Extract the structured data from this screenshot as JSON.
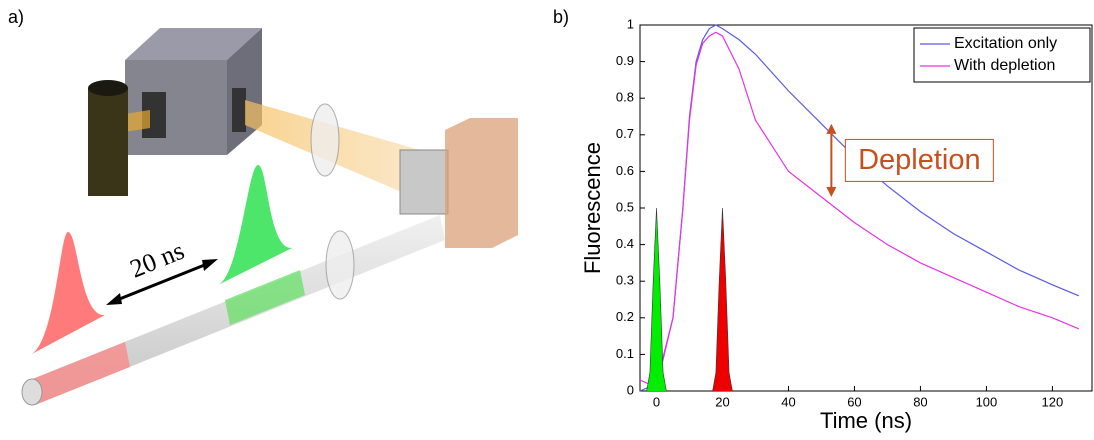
{
  "diagram": {
    "label": "a)",
    "delay": "20 ns"
  },
  "chart_data": {
    "type": "line",
    "panel_label": "b)",
    "xlabel": "Time (ns)",
    "ylabel": "Fluorescence",
    "xlim": [
      -5,
      132
    ],
    "ylim": [
      0,
      1
    ],
    "xticks": [
      0,
      20,
      40,
      60,
      80,
      100,
      120
    ],
    "yticks": [
      0,
      0.1,
      0.2,
      0.3,
      0.4,
      0.5,
      0.6,
      0.7,
      0.8,
      0.9,
      1
    ],
    "x": [
      -5,
      0,
      5,
      8,
      10,
      12,
      14,
      16,
      18,
      20,
      25,
      30,
      40,
      50,
      60,
      70,
      80,
      90,
      100,
      110,
      120,
      128
    ],
    "series": [
      {
        "name": "Excitation only",
        "color": "#5a5ae6",
        "values": [
          0,
          0.02,
          0.2,
          0.5,
          0.75,
          0.9,
          0.96,
          0.99,
          1.0,
          0.99,
          0.96,
          0.92,
          0.82,
          0.73,
          0.64,
          0.56,
          0.49,
          0.43,
          0.38,
          0.33,
          0.29,
          0.26
        ]
      },
      {
        "name": "With depletion",
        "color": "#e633e6",
        "values": [
          0.03,
          0.01,
          0.2,
          0.5,
          0.74,
          0.89,
          0.95,
          0.97,
          0.98,
          0.97,
          0.88,
          0.74,
          0.6,
          0.53,
          0.46,
          0.4,
          0.35,
          0.31,
          0.27,
          0.23,
          0.2,
          0.17
        ]
      },
      {
        "color": "#00ee00",
        "x": [
          -3,
          -2,
          -1,
          0,
          1,
          2,
          3
        ],
        "values": [
          0,
          0.05,
          0.3,
          0.5,
          0.3,
          0.05,
          0
        ]
      },
      {
        "color": "#ee0000",
        "x": [
          17,
          18,
          19,
          20,
          21,
          22,
          23
        ],
        "values": [
          0,
          0.05,
          0.3,
          0.5,
          0.3,
          0.05,
          0
        ]
      }
    ],
    "legend": "upper right",
    "annotation": {
      "text": "Depletion",
      "x": 53,
      "from": 0.73,
      "to": 0.53,
      "color": "#c8501e"
    }
  }
}
